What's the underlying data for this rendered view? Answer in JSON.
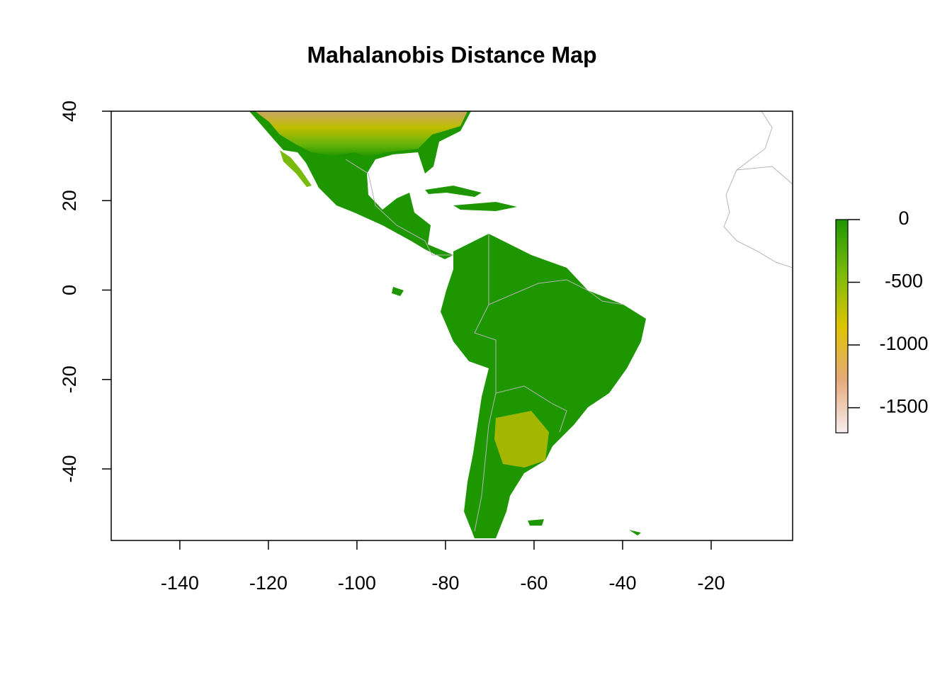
{
  "chart_data": {
    "type": "raster",
    "title": "Mahalanobis Distance Map",
    "xlim": [
      -155.5,
      -1.6
    ],
    "ylim": [
      -56,
      40
    ],
    "xticks": [
      -140,
      -120,
      -100,
      -80,
      -60,
      -40,
      -20
    ],
    "yticks": [
      -40,
      -20,
      0,
      20,
      40
    ],
    "colorbar": {
      "lim": [
        -1700,
        0
      ],
      "ticks": [
        -1500,
        -1000,
        -500,
        0
      ],
      "colors": [
        "#f7eeee",
        "#e6a97a",
        "#dcc400",
        "#79bb0a",
        "#1e9600"
      ]
    }
  }
}
